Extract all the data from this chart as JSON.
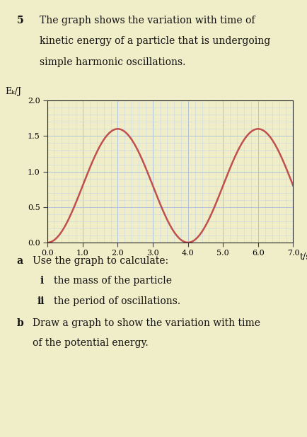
{
  "background_color": "#f0eec8",
  "page_bg": "#f0eec8",
  "question_number": "5",
  "question_text_line1": "The graph shows the variation with time of",
  "question_text_line2": "kinetic energy of a particle that is undergoing",
  "question_text_line3": "simple harmonic oscillations.",
  "ylabel": "Eₖ/J",
  "xlabel": "t/s",
  "ylim": [
    0.0,
    2.0
  ],
  "xlim": [
    0.0,
    7.0
  ],
  "curve_color": "#c0504d",
  "curve_linewidth": 1.8,
  "grid_major_color": "#b0c4d8",
  "grid_minor_color": "#c8d8e8",
  "axis_color": "#222222",
  "amplitude": 1.6,
  "period": 4.0
}
